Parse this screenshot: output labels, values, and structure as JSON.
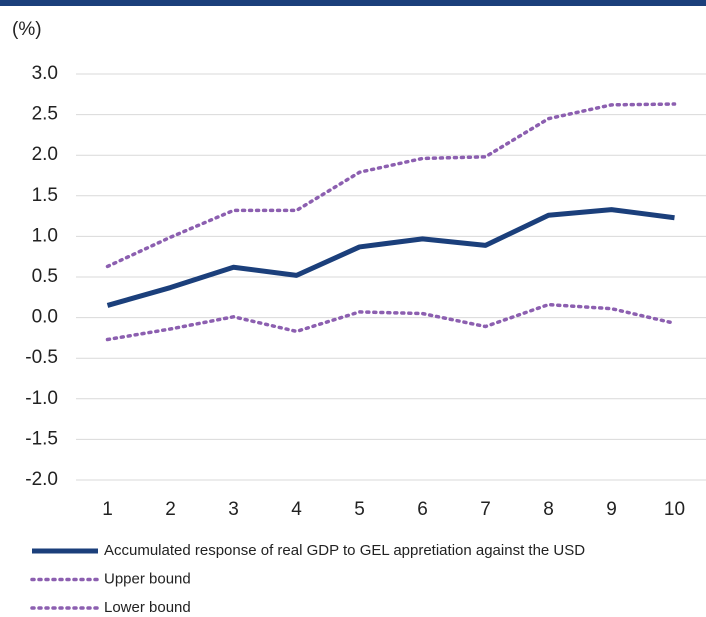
{
  "chart_data": {
    "type": "line",
    "y_label": "(%)",
    "categories": [
      "1",
      "2",
      "3",
      "4",
      "5",
      "6",
      "7",
      "8",
      "9",
      "10"
    ],
    "series": [
      {
        "name": "Accumulated response of real GDP to GEL appretiation against the USD",
        "color": "#1b3f7b",
        "style": "solid",
        "values": [
          0.15,
          0.37,
          0.62,
          0.52,
          0.87,
          0.97,
          0.89,
          1.26,
          1.33,
          1.23
        ]
      },
      {
        "name": "Upper bound",
        "color": "#8c5fb0",
        "style": "dotted",
        "values": [
          0.63,
          0.99,
          1.32,
          1.32,
          1.79,
          1.96,
          1.98,
          2.45,
          2.62,
          2.63
        ]
      },
      {
        "name": "Lower bound",
        "color": "#8c5fb0",
        "style": "dotted",
        "values": [
          -0.27,
          -0.14,
          0.01,
          -0.17,
          0.07,
          0.05,
          -0.11,
          0.16,
          0.11,
          -0.07
        ]
      }
    ],
    "ylim": [
      -2,
      3
    ],
    "yticks": [
      {
        "value": 3,
        "label": "3.0"
      },
      2.5,
      {
        "value": 2,
        "label": "2.0"
      },
      1.5,
      {
        "value": 1,
        "label": "1.0"
      },
      0.5,
      {
        "value": 0,
        "label": "0.0"
      },
      -0.5,
      {
        "value": -1,
        "label": "-1.0"
      },
      -1.5,
      {
        "value": -2,
        "label": "-2.0"
      }
    ],
    "grid": true
  }
}
